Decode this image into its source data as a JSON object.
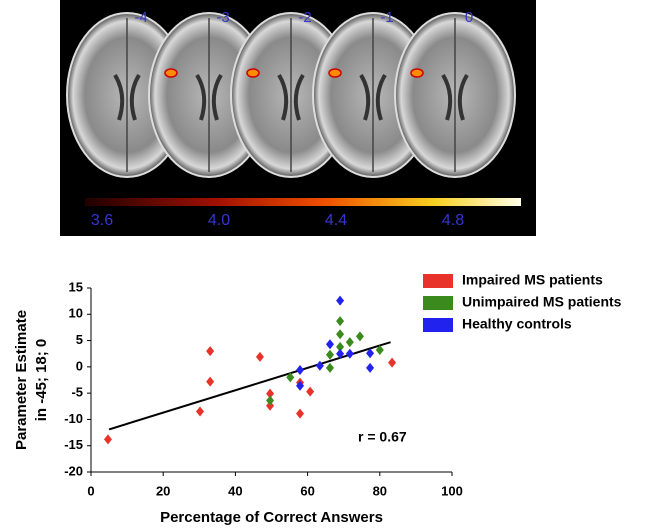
{
  "brain_panel": {
    "slice_labels": [
      "-4",
      "-3",
      "-2",
      "-1",
      "0"
    ],
    "colorbar_labels": [
      "3.6",
      "4.0",
      "4.4",
      "4.8"
    ]
  },
  "chart_data": {
    "type": "scatter",
    "xlabel": "Percentage of Correct Answers",
    "ylabel": [
      "Parameter Estimate",
      "in -45; 18; 0"
    ],
    "xlim": [
      0,
      100
    ],
    "xticks": [
      0,
      20,
      40,
      60,
      80,
      100
    ],
    "ylim": [
      -20,
      15
    ],
    "yticks": [
      -20,
      -15,
      -10,
      -5,
      0,
      5,
      10,
      15
    ],
    "series": [
      {
        "name": "Impaired MS patients",
        "color": "#e8332a",
        "x": [
          4.7,
          30.2,
          33,
          33,
          46.8,
          49.6,
          49.6,
          57.9,
          57.9,
          60.7,
          83.4
        ],
        "values": [
          -13.8,
          -8.5,
          3,
          -2.8,
          1.9,
          -5.1,
          -7.4,
          -3,
          -8.9,
          -4.7,
          0.8
        ]
      },
      {
        "name": "Unimpaired MS patients",
        "color": "#3a8a1e",
        "x": [
          55.2,
          49.6,
          66.2,
          66.2,
          69,
          69,
          69,
          71.7,
          74.5,
          80
        ],
        "values": [
          -2,
          -6.4,
          -0.2,
          2.3,
          3.8,
          6.2,
          8.7,
          4.7,
          5.8,
          3.2
        ]
      },
      {
        "name": "Healthy controls",
        "color": "#2222ee",
        "x": [
          57.9,
          57.9,
          63.4,
          66.2,
          69,
          69,
          71.7,
          77.3,
          77.3
        ],
        "values": [
          -3.6,
          -0.6,
          0.2,
          4.3,
          2.5,
          12.6,
          2.5,
          2.6,
          -0.2
        ]
      }
    ],
    "trend_line": {
      "x": [
        5,
        83
      ],
      "values": [
        -11.9,
        4.7
      ]
    },
    "annotation": "r = 0.67"
  }
}
